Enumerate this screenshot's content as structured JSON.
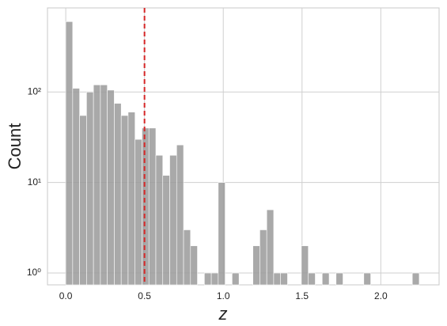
{
  "chart_data": {
    "type": "histogram",
    "xlabel": "z",
    "ylabel": "Count",
    "log_y": true,
    "grid": true,
    "color": "#9a9a9a",
    "bins": [
      0,
      0.044,
      0.088,
      0.132,
      0.176,
      0.22,
      0.264,
      0.308,
      0.352,
      0.396,
      0.44,
      0.484,
      0.528,
      0.572,
      0.616,
      0.66,
      0.704,
      0.748,
      0.792,
      0.836,
      0.88,
      0.924,
      0.968,
      1.012,
      1.056,
      1.1,
      1.144,
      1.188,
      1.232,
      1.276,
      1.32,
      1.364,
      1.408,
      1.452,
      1.496,
      1.54,
      1.584,
      1.628,
      1.672,
      1.716,
      1.76,
      1.804,
      1.848,
      1.892,
      1.936,
      1.98,
      2.024,
      2.068,
      2.112,
      2.156,
      2.2,
      2.244
    ],
    "values": [
      600,
      110,
      55,
      100,
      120,
      120,
      105,
      75,
      55,
      60,
      30,
      40,
      40,
      20,
      12,
      20,
      26,
      3,
      2,
      0,
      1,
      1,
      10,
      0,
      1,
      0,
      0,
      2,
      3,
      5,
      1,
      1,
      0,
      0,
      2,
      1,
      0,
      1,
      0,
      1,
      0,
      0,
      0,
      1,
      0,
      0,
      0,
      0,
      0,
      0,
      1
    ],
    "vline": {
      "value": 0.5,
      "color": "#d62728"
    },
    "xlim": [
      -0.116,
      2.37
    ],
    "ylim": [
      0.74,
      850
    ],
    "xticks": [
      {
        "value": 0,
        "label": "0.0"
      },
      {
        "value": 0.5,
        "label": "0.5"
      },
      {
        "value": 1,
        "label": "1.0"
      },
      {
        "value": 1.5,
        "label": "1.5"
      },
      {
        "value": 2,
        "label": "2.0"
      }
    ],
    "yticks": [
      {
        "value": 1,
        "label": "10⁰"
      },
      {
        "value": 10,
        "label": "10¹"
      },
      {
        "value": 100,
        "label": "10²"
      }
    ]
  }
}
